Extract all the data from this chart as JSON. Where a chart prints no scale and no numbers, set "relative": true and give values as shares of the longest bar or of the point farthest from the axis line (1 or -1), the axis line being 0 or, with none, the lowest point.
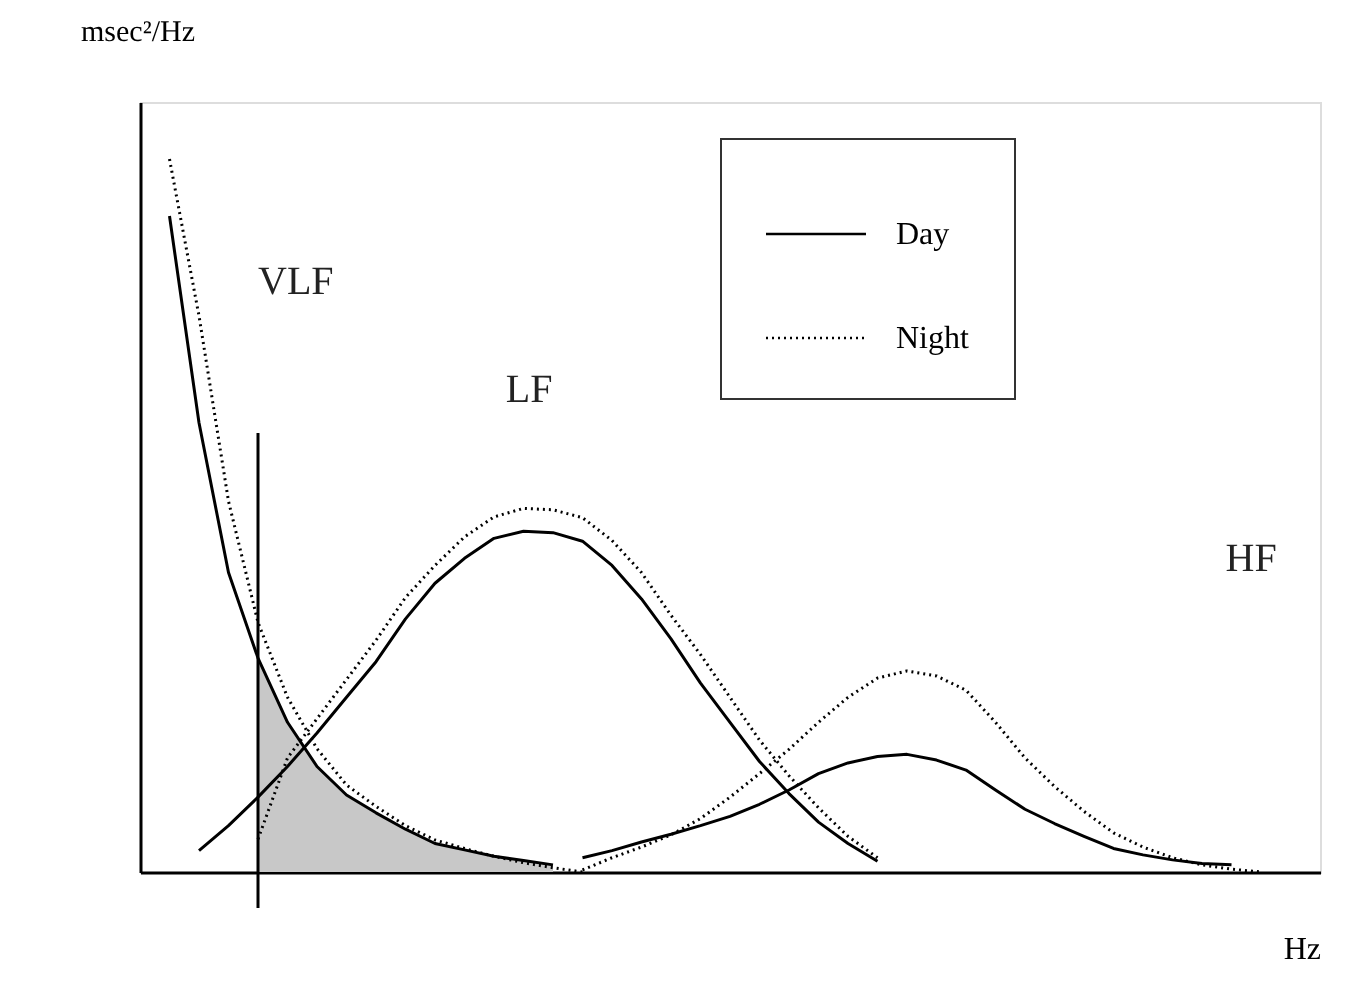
{
  "chart_data": {
    "type": "line",
    "relative": true,
    "xlabel": "Hz",
    "ylabel": "msec²/Hz",
    "legend": "top right",
    "marker": "none",
    "categories": [
      null,
      null,
      null,
      null,
      null,
      null,
      null,
      null,
      null,
      null,
      null,
      null,
      null,
      null,
      null,
      null,
      null,
      null,
      null,
      null,
      null,
      null,
      null,
      null,
      null,
      null,
      null,
      null,
      null,
      null,
      null,
      null,
      null,
      null,
      null,
      null,
      null,
      null,
      null,
      null,
      null
    ],
    "series": [
      {
        "name": "Day",
        "color": "#000000",
        "line_style": "solid",
        "values": [
          null,
          0.92,
          0.63,
          0.42,
          0.3,
          0.21,
          0.148,
          0.108,
          0.083,
          0.06,
          0.04,
          0.031,
          0.022,
          0.016,
          0.01,
          null,
          null,
          null,
          null,
          null,
          null,
          null,
          null,
          null,
          null,
          null,
          null,
          null,
          null,
          null,
          null,
          null,
          null,
          null,
          null,
          null,
          null,
          null,
          null,
          null,
          null
        ]
      },
      {
        "name": "Night",
        "color": "#000000",
        "line_style": "dotted",
        "values": [
          null,
          1.0,
          0.78,
          0.52,
          0.35,
          0.245,
          0.173,
          0.122,
          0.092,
          0.065,
          0.045,
          0.033,
          0.022,
          0.013,
          0.006,
          0.0,
          null,
          null,
          null,
          null,
          null,
          null,
          null,
          null,
          null,
          null,
          null,
          null,
          null,
          null,
          null,
          null,
          null,
          null,
          null,
          null,
          null,
          null,
          null,
          null,
          null
        ]
      },
      {
        "color": "#000000",
        "line_style": "solid",
        "values": [
          null,
          null,
          0.03,
          0.065,
          0.105,
          0.148,
          0.195,
          0.245,
          0.295,
          0.355,
          0.405,
          0.44,
          0.468,
          0.478,
          0.476,
          0.464,
          0.43,
          0.383,
          0.327,
          0.265,
          0.21,
          0.155,
          0.11,
          0.07,
          0.04,
          0.015,
          null,
          null,
          null,
          null,
          null,
          null,
          null,
          null,
          null,
          null,
          null,
          null,
          null,
          null,
          null
        ]
      },
      {
        "color": "#000000",
        "line_style": "dotted",
        "values": [
          null,
          null,
          null,
          null,
          0.046,
          0.16,
          0.215,
          0.27,
          0.325,
          0.385,
          0.43,
          0.47,
          0.498,
          0.51,
          0.508,
          0.497,
          0.465,
          0.42,
          0.36,
          0.305,
          0.245,
          0.185,
          0.135,
          0.09,
          0.05,
          0.02,
          null,
          null,
          null,
          null,
          null,
          null,
          null,
          null,
          null,
          null,
          null,
          null,
          null,
          null,
          null
        ]
      },
      {
        "color": "#000000",
        "line_style": "solid",
        "values": [
          null,
          null,
          null,
          null,
          null,
          null,
          null,
          null,
          null,
          null,
          null,
          null,
          null,
          null,
          null,
          0.02,
          0.03,
          0.042,
          0.053,
          0.065,
          0.078,
          0.095,
          0.115,
          0.138,
          0.153,
          0.162,
          0.165,
          0.157,
          0.143,
          0.115,
          0.088,
          0.068,
          0.05,
          0.033,
          0.024,
          0.017,
          0.012,
          0.01,
          null,
          null,
          null
        ]
      },
      {
        "color": "#000000",
        "line_style": "dotted",
        "values": [
          null,
          null,
          null,
          null,
          null,
          null,
          null,
          null,
          null,
          null,
          null,
          null,
          null,
          null,
          null,
          0.003,
          0.02,
          0.035,
          0.052,
          0.075,
          0.105,
          0.138,
          0.172,
          0.21,
          0.245,
          0.272,
          0.282,
          0.275,
          0.255,
          0.21,
          0.16,
          0.12,
          0.085,
          0.055,
          0.035,
          0.02,
          0.01,
          0.004,
          0.0,
          null,
          null
        ]
      }
    ],
    "annotations": [
      "VLF",
      "LF",
      "HF"
    ]
  }
}
